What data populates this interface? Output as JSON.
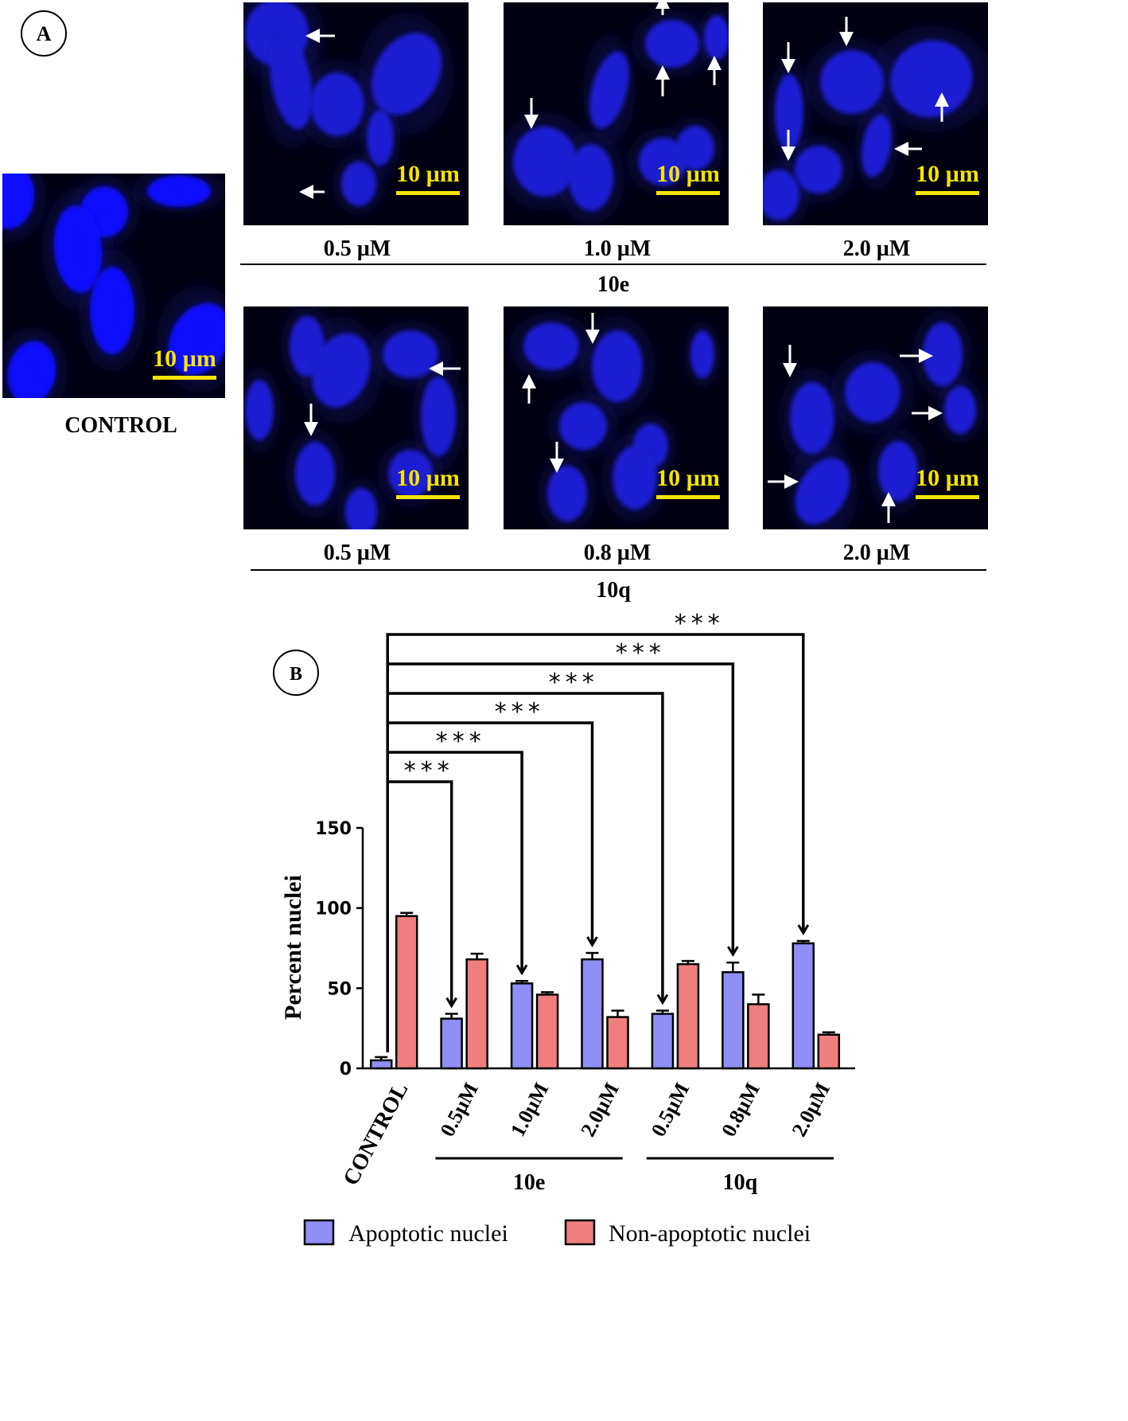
{
  "panel_a": {
    "label": "A",
    "control": {
      "caption": "CONTROL",
      "scale": "10 µm"
    },
    "rows": [
      {
        "compound": "10e",
        "images": [
          {
            "conc": "0.5 µM",
            "scale": "10 µm"
          },
          {
            "conc": "1.0 µM",
            "scale": "10 µm"
          },
          {
            "conc": "2.0 µM",
            "scale": "10 µm"
          }
        ]
      },
      {
        "compound": "10q",
        "images": [
          {
            "conc": "0.5 µM",
            "scale": "10 µm"
          },
          {
            "conc": "0.8 µM",
            "scale": "10 µm"
          },
          {
            "conc": "2.0 µM",
            "scale": "10 µm"
          }
        ]
      }
    ]
  },
  "panel_b": {
    "label": "B"
  },
  "colors": {
    "apoptotic": "#8f8ff5",
    "non_apoptotic": "#f07e7e",
    "nuclei": "#1414e0",
    "scale_bar": "#f5e400"
  },
  "chart_data": {
    "type": "bar",
    "ylabel": "Percent nuclei",
    "ylim": [
      0,
      150
    ],
    "yticks": [
      0,
      50,
      100,
      150
    ],
    "categories": [
      "CONTROL",
      "0.5µM",
      "1.0µM",
      "2.0µM",
      "0.5µM",
      "0.8µM",
      "2.0µM"
    ],
    "groups": [
      {
        "label": "10e",
        "from": 1,
        "to": 3
      },
      {
        "label": "10q",
        "from": 4,
        "to": 6
      }
    ],
    "series": [
      {
        "name": "Apoptotic nuclei",
        "values": [
          5,
          31,
          53,
          68,
          34,
          60,
          78
        ],
        "errors": [
          2,
          3,
          1.5,
          4,
          2,
          6,
          1.5
        ]
      },
      {
        "name": "Non-apoptotic nuclei",
        "values": [
          95,
          68,
          46,
          32,
          65,
          40,
          21
        ],
        "errors": [
          2,
          3.5,
          1.5,
          4,
          2,
          6,
          1.5
        ]
      }
    ],
    "significance": [
      {
        "vs": 1,
        "label": "***"
      },
      {
        "vs": 2,
        "label": "***"
      },
      {
        "vs": 3,
        "label": "***"
      },
      {
        "vs": 4,
        "label": "***"
      },
      {
        "vs": 5,
        "label": "***"
      },
      {
        "vs": 6,
        "label": "***"
      }
    ]
  }
}
